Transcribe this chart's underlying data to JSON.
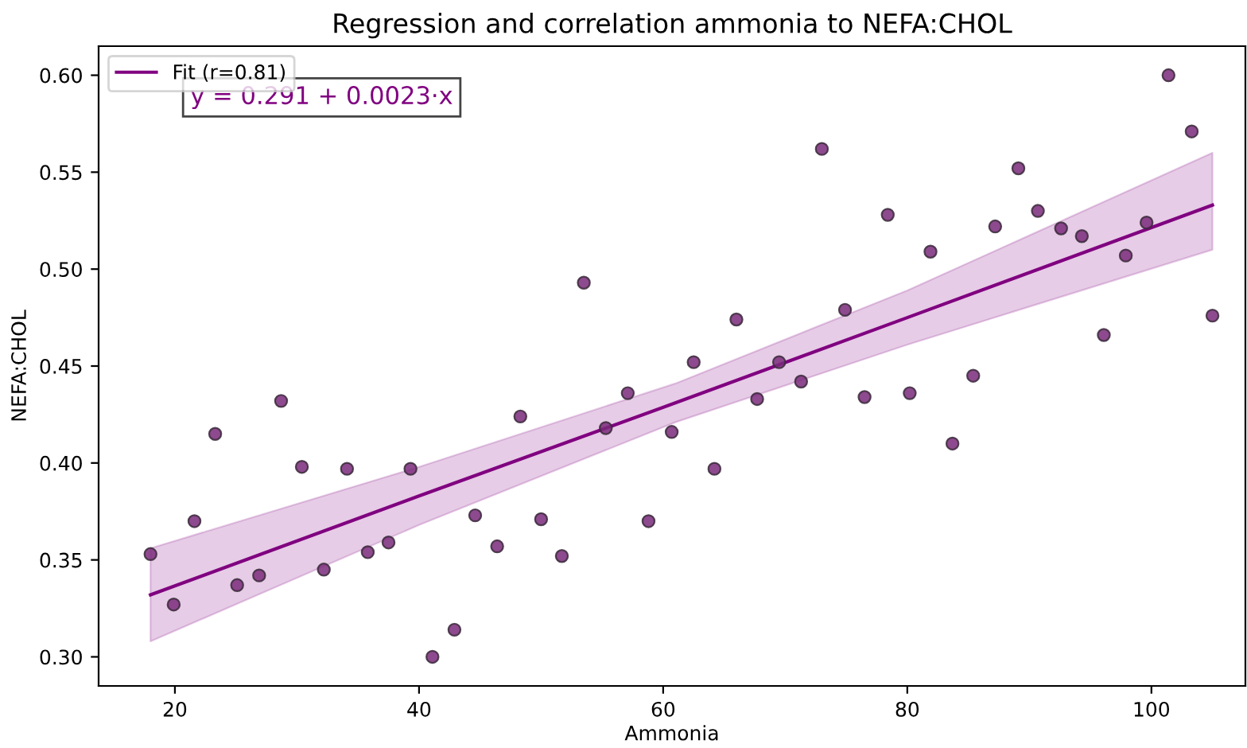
{
  "chart_data": {
    "type": "scatter",
    "title": "Regression and correlation ammonia to NEFA:CHOL",
    "xlabel": "Ammonia",
    "ylabel": "NEFA:CHOL",
    "xlim": [
      13.75,
      107.7
    ],
    "ylim": [
      0.285,
      0.615
    ],
    "xticks": [
      20,
      40,
      60,
      80,
      100
    ],
    "yticks": [
      {
        "value": 0.3,
        "label": "0.30"
      },
      0.35,
      {
        "value": 0.4,
        "label": "0.40"
      },
      0.45,
      {
        "value": 0.5,
        "label": "0.50"
      },
      0.55,
      {
        "value": 0.6,
        "label": "0.60"
      }
    ],
    "grid": false,
    "legend": "top left",
    "annotations": [
      "y = 0.291 + 0.0023·x"
    ],
    "series": [
      {
        "marker": "circle",
        "color": "#7a2a7a",
        "x": [
          18.0,
          19.9,
          21.6,
          23.3,
          25.1,
          26.9,
          28.7,
          30.4,
          32.2,
          34.1,
          35.8,
          37.5,
          39.3,
          41.1,
          42.9,
          44.6,
          46.4,
          48.3,
          50.0,
          51.7,
          53.5,
          55.3,
          57.1,
          58.8,
          60.7,
          62.5,
          64.2,
          66.0,
          67.7,
          69.5,
          71.3,
          73.0,
          74.9,
          76.5,
          78.4,
          80.2,
          81.9,
          83.7,
          85.4,
          87.2,
          89.1,
          90.7,
          92.6,
          94.3,
          96.1,
          97.9,
          99.6,
          101.4,
          103.3,
          105.0
        ],
        "values": [
          0.353,
          0.327,
          0.37,
          0.415,
          0.337,
          0.342,
          0.432,
          0.398,
          0.345,
          0.397,
          0.354,
          0.359,
          0.397,
          0.3,
          0.314,
          0.373,
          0.357,
          0.424,
          0.371,
          0.352,
          0.493,
          0.418,
          0.436,
          0.37,
          0.416,
          0.452,
          0.397,
          0.474,
          0.433,
          0.452,
          0.442,
          0.562,
          0.479,
          0.434,
          0.528,
          0.436,
          0.509,
          0.41,
          0.445,
          0.522,
          0.552,
          0.53,
          0.521,
          0.517,
          0.466,
          0.507,
          0.524,
          0.6,
          0.571,
          0.476
        ]
      },
      {
        "type": "line",
        "marker": "none",
        "name": "Fit (r=0.81)",
        "color": "#800080",
        "x": [
          18,
          40,
          61,
          80,
          105
        ],
        "values": [
          0.332,
          0.383,
          0.431,
          0.475,
          0.533
        ],
        "lower": [
          0.308,
          0.368,
          0.421,
          0.461,
          0.51
        ],
        "upper": [
          0.356,
          0.398,
          0.441,
          0.489,
          0.56
        ]
      }
    ]
  }
}
